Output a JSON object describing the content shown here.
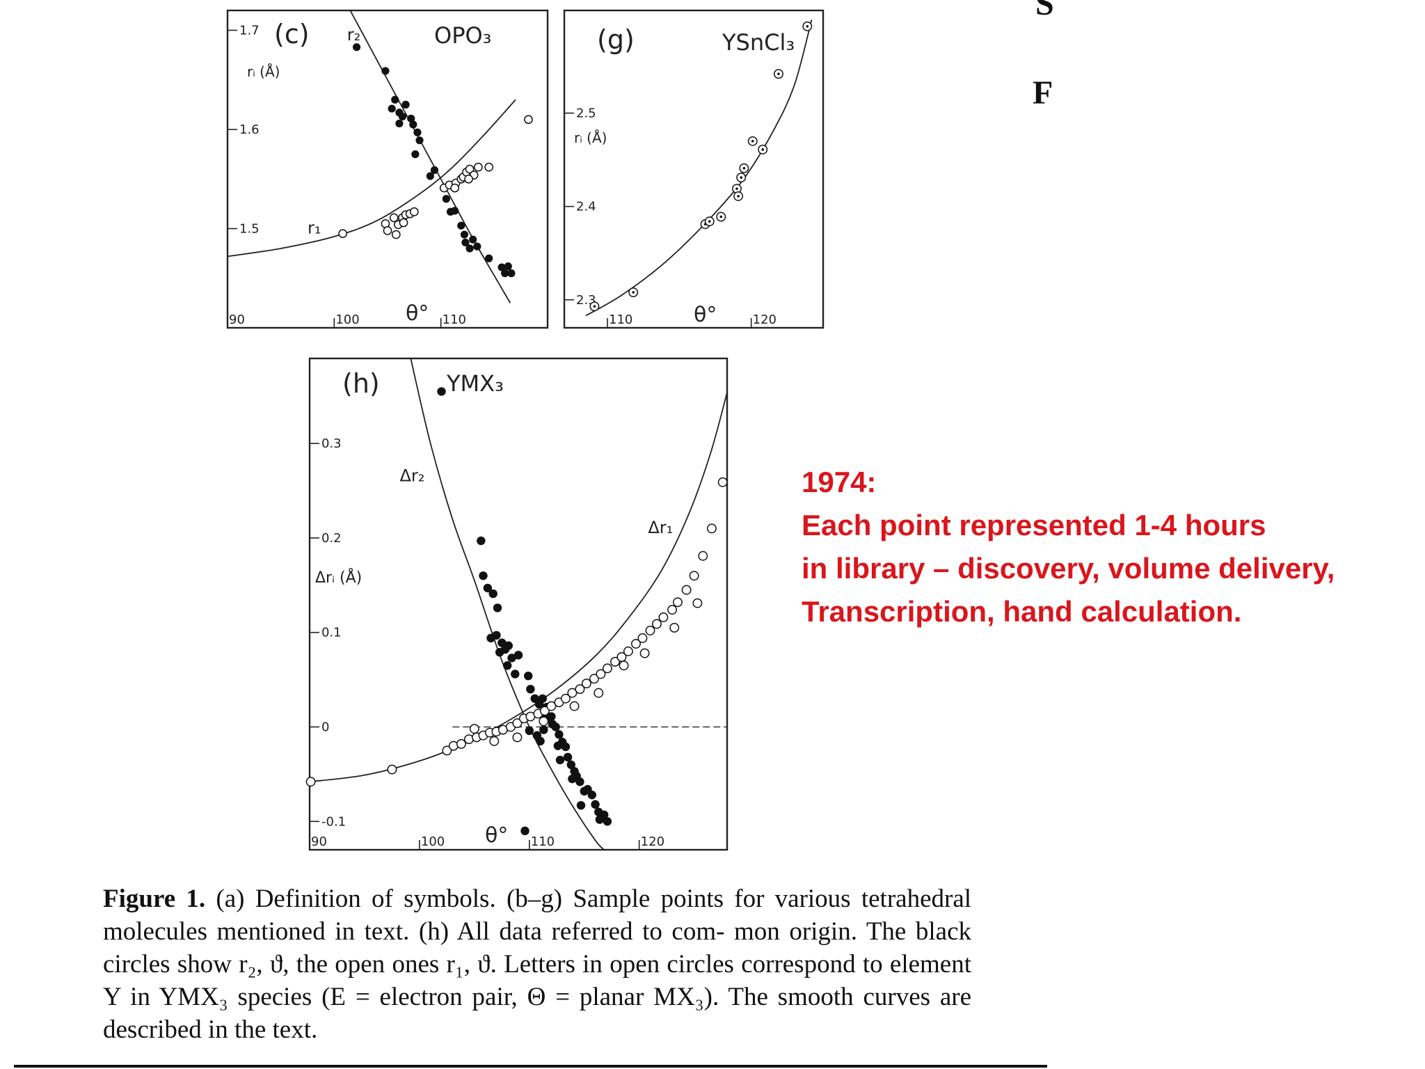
{
  "edge_fragments": [
    "S",
    "F"
  ],
  "note": {
    "year": "1974:",
    "lines": [
      "Each point represented 1-4 hours",
      "in library – discovery, volume delivery,",
      "Transcription, hand calculation."
    ],
    "color": "#d9161c"
  },
  "caption": {
    "label": "Figure 1.",
    "lines": [
      "(a) Definition of symbols. (b–g) Sample points for various",
      "tetrahedral molecules mentioned in text. (h) All data referred to com-",
      "mon origin. The black circles show r₂, ϑ, the open ones r₁, ϑ. Letters in",
      "open circles correspond to element Y in YMX₃ species (E = electron",
      "pair, Θ = planar MX₃). The smooth curves are described in the text."
    ]
  },
  "chart_data": [
    {
      "type": "scatter",
      "panel": "(c)",
      "title": "OPO₃",
      "xlabel": "θ°",
      "ylabel": "rᵢ (Å)",
      "xlim": [
        90,
        120
      ],
      "ylim": [
        1.4,
        1.72
      ],
      "xticks": [
        {
          "value": 90,
          "label": "90"
        },
        {
          "value": 100,
          "label": "100"
        },
        {
          "value": 110,
          "label": "110"
        }
      ],
      "yticks": [
        {
          "value": 1.5,
          "label": "1.5"
        },
        {
          "value": 1.6,
          "label": "1.6"
        },
        {
          "value": 1.7,
          "label": "1.7"
        }
      ],
      "curve_labels": [
        {
          "text": "r₂",
          "x": 101.2,
          "y": 1.69
        },
        {
          "text": "r₁",
          "x": 97.5,
          "y": 1.495
        }
      ],
      "curves": [
        {
          "name": "r₂",
          "points": [
            [
              101.5,
              1.72
            ],
            [
              106,
              1.63
            ],
            [
              110,
              1.55
            ],
            [
              113,
              1.49
            ],
            [
              116.5,
              1.425
            ]
          ]
        },
        {
          "name": "r₁",
          "points": [
            [
              90,
              1.472
            ],
            [
              95,
              1.48
            ],
            [
              100,
              1.492
            ],
            [
              104,
              1.508
            ],
            [
              108,
              1.535
            ],
            [
              111,
              1.561
            ],
            [
              114,
              1.594
            ],
            [
              117,
              1.63
            ]
          ]
        }
      ],
      "series": [
        {
          "name": "r₂",
          "marker": "filled",
          "points": [
            [
              102.1,
              1.683
            ],
            [
              104.8,
              1.659
            ],
            [
              105.4,
              1.621
            ],
            [
              105.7,
              1.63
            ],
            [
              106.1,
              1.617
            ],
            [
              106.4,
              1.613
            ],
            [
              106.7,
              1.625
            ],
            [
              107.2,
              1.611
            ],
            [
              107.4,
              1.605
            ],
            [
              106.1,
              1.606
            ],
            [
              107.8,
              1.597
            ],
            [
              108.0,
              1.589
            ],
            [
              107.6,
              1.575
            ],
            [
              109.0,
              1.553
            ],
            [
              109.4,
              1.559
            ],
            [
              110.5,
              1.53
            ],
            [
              110.9,
              1.517
            ],
            [
              111.3,
              1.518
            ],
            [
              111.9,
              1.503
            ],
            [
              112.2,
              1.494
            ],
            [
              112.3,
              1.486
            ],
            [
              112.7,
              1.48
            ],
            [
              113.4,
              1.482
            ],
            [
              113.0,
              1.489
            ],
            [
              114.5,
              1.47
            ],
            [
              115.7,
              1.461
            ],
            [
              116.0,
              1.455
            ],
            [
              116.3,
              1.462
            ],
            [
              116.6,
              1.455
            ]
          ]
        },
        {
          "name": "r₁",
          "marker": "open",
          "points": [
            [
              100.8,
              1.495
            ],
            [
              104.8,
              1.505
            ],
            [
              105.0,
              1.498
            ],
            [
              105.6,
              1.511
            ],
            [
              106.0,
              1.504
            ],
            [
              106.4,
              1.511
            ],
            [
              106.7,
              1.514
            ],
            [
              107.1,
              1.515
            ],
            [
              107.5,
              1.517
            ],
            [
              105.8,
              1.494
            ],
            [
              106.5,
              1.506
            ],
            [
              110.3,
              1.541
            ],
            [
              110.8,
              1.544
            ],
            [
              111.4,
              1.546
            ],
            [
              111.9,
              1.55
            ],
            [
              112.1,
              1.552
            ],
            [
              112.4,
              1.557
            ],
            [
              112.7,
              1.56
            ],
            [
              113.1,
              1.554
            ],
            [
              113.5,
              1.562
            ],
            [
              114.5,
              1.562
            ],
            [
              112.6,
              1.55
            ],
            [
              111.3,
              1.541
            ],
            [
              118.2,
              1.61
            ]
          ]
        }
      ]
    },
    {
      "type": "scatter",
      "panel": "(g)",
      "title": "YSnCl₃",
      "xlabel": "θ°",
      "ylabel": "rᵢ (Å)",
      "xlim": [
        107,
        125
      ],
      "ylim": [
        2.27,
        2.61
      ],
      "xticks": [
        {
          "value": 110,
          "label": "110"
        },
        {
          "value": 120,
          "label": "120"
        }
      ],
      "yticks": [
        {
          "value": 2.3,
          "label": "2.3"
        },
        {
          "value": 2.4,
          "label": "2.4"
        },
        {
          "value": 2.5,
          "label": "2.5"
        }
      ],
      "curves": [
        {
          "name": "r₁",
          "points": [
            [
              108.5,
              2.283
            ],
            [
              111,
              2.305
            ],
            [
              114,
              2.34
            ],
            [
              117,
              2.385
            ],
            [
              119.5,
              2.43
            ],
            [
              121.5,
              2.48
            ],
            [
              123,
              2.53
            ],
            [
              124.2,
              2.6
            ]
          ]
        }
      ],
      "series": [
        {
          "name": "r₁",
          "marker": "open-letter",
          "points": [
            [
              109.1,
              2.293
            ],
            [
              111.8,
              2.308
            ],
            [
              116.8,
              2.381
            ],
            [
              117.1,
              2.384
            ],
            [
              117.9,
              2.389
            ],
            [
              119.0,
              2.419
            ],
            [
              119.1,
              2.411
            ],
            [
              119.3,
              2.431
            ],
            [
              119.5,
              2.441
            ],
            [
              120.1,
              2.47
            ],
            [
              120.8,
              2.461
            ],
            [
              121.9,
              2.542
            ],
            [
              123.9,
              2.593
            ]
          ]
        }
      ]
    },
    {
      "type": "scatter",
      "panel": "(h)",
      "title": "YMX₃",
      "xlabel": "θ°",
      "ylabel": "Δrᵢ (Å)",
      "xlim": [
        90,
        128
      ],
      "ylim": [
        -0.13,
        0.39
      ],
      "xticks": [
        {
          "value": 90,
          "label": "90"
        },
        {
          "value": 100,
          "label": "100"
        },
        {
          "value": 110,
          "label": "110"
        },
        {
          "value": 120,
          "label": "120"
        }
      ],
      "yticks": [
        {
          "value": -0.1,
          "label": "-0.1"
        },
        {
          "value": 0,
          "label": "0"
        },
        {
          "value": 0.1,
          "label": "0.1"
        },
        {
          "value": 0.2,
          "label": "0.2"
        },
        {
          "value": 0.3,
          "label": "0.3"
        }
      ],
      "curve_labels": [
        {
          "text": "Δr₂",
          "x": 98.2,
          "y": 0.26
        },
        {
          "text": "Δr₁",
          "x": 120.8,
          "y": 0.205
        }
      ],
      "curves": [
        {
          "name": "Δr₂",
          "points": [
            [
              99.2,
              0.39
            ],
            [
              101,
              0.3
            ],
            [
              103,
              0.22
            ],
            [
              105,
              0.155
            ],
            [
              107.5,
              0.07
            ],
            [
              110,
              0.0
            ],
            [
              112,
              -0.045
            ],
            [
              114,
              -0.085
            ],
            [
              116,
              -0.12
            ],
            [
              116.8,
              -0.13
            ]
          ]
        },
        {
          "name": "Δr₁",
          "points": [
            [
              90,
              -0.058
            ],
            [
              95,
              -0.051
            ],
            [
              100,
              -0.036
            ],
            [
              104,
              -0.018
            ],
            [
              108,
              0.006
            ],
            [
              112,
              0.036
            ],
            [
              116,
              0.075
            ],
            [
              119,
              0.115
            ],
            [
              122,
              0.165
            ],
            [
              124.5,
              0.225
            ],
            [
              126.5,
              0.29
            ],
            [
              128,
              0.354
            ]
          ]
        }
      ],
      "baseline": {
        "y": 0.0,
        "from": 103,
        "to": 128
      },
      "series": [
        {
          "name": "Δr₂",
          "marker": "filled",
          "points": [
            [
              102.0,
              0.355
            ],
            [
              105.6,
              0.197
            ],
            [
              105.8,
              0.16
            ],
            [
              106.2,
              0.147
            ],
            [
              106.7,
              0.141
            ],
            [
              107.1,
              0.126
            ],
            [
              106.5,
              0.094
            ],
            [
              107.0,
              0.097
            ],
            [
              107.3,
              0.079
            ],
            [
              107.5,
              0.089
            ],
            [
              107.8,
              0.082
            ],
            [
              108.1,
              0.086
            ],
            [
              108.4,
              0.073
            ],
            [
              108.0,
              0.065
            ],
            [
              108.7,
              0.056
            ],
            [
              109.0,
              0.076
            ],
            [
              109.9,
              0.054
            ],
            [
              110.1,
              0.04
            ],
            [
              110.5,
              0.03
            ],
            [
              110.9,
              0.024
            ],
            [
              111.2,
              0.03
            ],
            [
              111.4,
              0.02
            ],
            [
              111.5,
              0.013
            ],
            [
              111.8,
              0.01
            ],
            [
              112.1,
              0.003
            ],
            [
              112.4,
              0.0
            ],
            [
              112.7,
              -0.008
            ],
            [
              113.0,
              -0.016
            ],
            [
              113.3,
              -0.021
            ],
            [
              113.5,
              -0.032
            ],
            [
              113.8,
              -0.04
            ],
            [
              114.1,
              -0.047
            ],
            [
              114.3,
              -0.052
            ],
            [
              114.6,
              -0.058
            ],
            [
              115.0,
              -0.068
            ],
            [
              115.3,
              -0.066
            ],
            [
              115.7,
              -0.072
            ],
            [
              116.0,
              -0.082
            ],
            [
              116.3,
              -0.09
            ],
            [
              116.8,
              -0.093
            ],
            [
              117.1,
              -0.1
            ],
            [
              116.4,
              -0.098
            ],
            [
              111.6,
              0.021
            ],
            [
              112.0,
              0.011
            ],
            [
              110.0,
              -0.004
            ],
            [
              110.7,
              -0.009
            ],
            [
              111.0,
              -0.015
            ],
            [
              109.6,
              -0.11
            ],
            [
              112.8,
              -0.035
            ],
            [
              113.9,
              -0.055
            ],
            [
              111.3,
              -0.003
            ],
            [
              112.6,
              -0.02
            ],
            [
              114.7,
              -0.083
            ]
          ]
        },
        {
          "name": "Δr₁",
          "marker": "open",
          "points": [
            [
              90.1,
              -0.058
            ],
            [
              97.5,
              -0.045
            ],
            [
              102.5,
              -0.025
            ],
            [
              103.1,
              -0.02
            ],
            [
              103.8,
              -0.018
            ],
            [
              104.5,
              -0.013
            ],
            [
              105.2,
              -0.011
            ],
            [
              105.8,
              -0.009
            ],
            [
              106.4,
              -0.006
            ],
            [
              107.0,
              -0.005
            ],
            [
              107.6,
              -0.003
            ],
            [
              108.3,
              0.0
            ],
            [
              108.9,
              0.004
            ],
            [
              109.5,
              0.009
            ],
            [
              110.1,
              0.011
            ],
            [
              110.8,
              0.014
            ],
            [
              111.4,
              0.017
            ],
            [
              112.0,
              0.022
            ],
            [
              112.7,
              0.026
            ],
            [
              113.3,
              0.03
            ],
            [
              113.9,
              0.036
            ],
            [
              114.6,
              0.04
            ],
            [
              115.2,
              0.046
            ],
            [
              115.9,
              0.051
            ],
            [
              116.5,
              0.056
            ],
            [
              117.1,
              0.062
            ],
            [
              117.8,
              0.069
            ],
            [
              118.4,
              0.074
            ],
            [
              119.0,
              0.08
            ],
            [
              119.7,
              0.088
            ],
            [
              120.3,
              0.094
            ],
            [
              121.0,
              0.102
            ],
            [
              121.6,
              0.109
            ],
            [
              122.2,
              0.116
            ],
            [
              123.0,
              0.124
            ],
            [
              123.5,
              0.132
            ],
            [
              124.3,
              0.145
            ],
            [
              125.0,
              0.16
            ],
            [
              125.8,
              0.181
            ],
            [
              126.6,
              0.21
            ],
            [
              127.6,
              0.259
            ],
            [
              105.0,
              -0.002
            ],
            [
              106.8,
              -0.015
            ],
            [
              108.9,
              -0.011
            ],
            [
              111.3,
              0.006
            ],
            [
              114.1,
              0.022
            ],
            [
              116.3,
              0.036
            ],
            [
              118.6,
              0.065
            ],
            [
              120.5,
              0.078
            ],
            [
              123.2,
              0.105
            ],
            [
              125.3,
              0.131
            ]
          ]
        }
      ]
    }
  ]
}
